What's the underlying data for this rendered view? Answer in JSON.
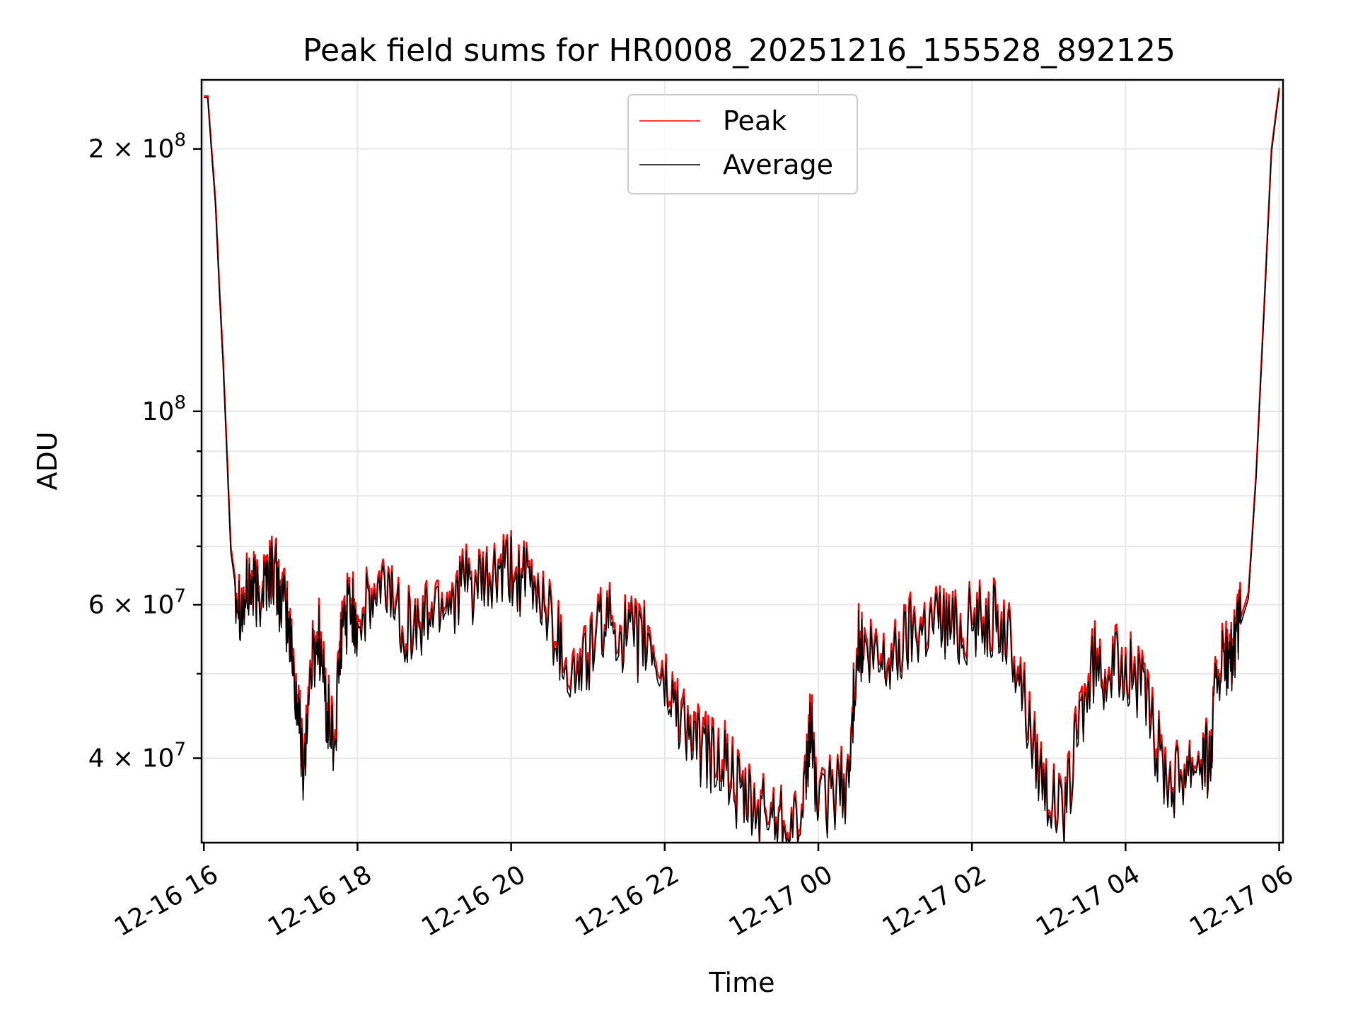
{
  "chart_data": {
    "type": "line",
    "title": "Peak field sums for HR0008_20251216_155528_892125",
    "xlabel": "Time",
    "ylabel": "ADU",
    "yscale": "log",
    "ylim": [
      32000000,
      240000000
    ],
    "xlim_hours": [
      -0.03,
      14.05
    ],
    "grid": true,
    "legend_position": "top-center",
    "x_ticks": [
      {
        "hour": 0,
        "label": "12-16 16"
      },
      {
        "hour": 2,
        "label": "12-16 18"
      },
      {
        "hour": 4,
        "label": "12-16 20"
      },
      {
        "hour": 6,
        "label": "12-16 22"
      },
      {
        "hour": 8,
        "label": "12-17 00"
      },
      {
        "hour": 10,
        "label": "12-17 02"
      },
      {
        "hour": 12,
        "label": "12-17 04"
      },
      {
        "hour": 14,
        "label": "12-17 06"
      }
    ],
    "y_major_ticks": [
      {
        "value": 100000000,
        "mantissa": "",
        "base": "10",
        "exp": "8"
      },
      {
        "value": 200000000,
        "mantissa": "2 × ",
        "base": "10",
        "exp": "8"
      },
      {
        "value": 40000000,
        "mantissa": "4 × ",
        "base": "10",
        "exp": "7"
      },
      {
        "value": 60000000,
        "mantissa": "6 × ",
        "base": "10",
        "exp": "7"
      }
    ],
    "y_minor_grid": [
      50000000,
      70000000,
      80000000,
      90000000
    ],
    "series": [
      {
        "name": "Peak",
        "color": "#ff0000",
        "hours": [
          0.0,
          0.05,
          0.1,
          0.15,
          0.2,
          0.25,
          0.3,
          0.35,
          0.4,
          0.5,
          0.6,
          0.7,
          0.8,
          0.9,
          1.0,
          1.1,
          1.2,
          1.3,
          1.4,
          1.5,
          1.6,
          1.7,
          1.8,
          1.9,
          2.0,
          2.2,
          2.4,
          2.6,
          2.8,
          3.0,
          3.2,
          3.4,
          3.6,
          3.8,
          4.0,
          4.2,
          4.4,
          4.6,
          4.8,
          5.0,
          5.2,
          5.4,
          5.6,
          5.8,
          6.0,
          6.2,
          6.4,
          6.6,
          6.8,
          7.0,
          7.2,
          7.4,
          7.6,
          7.8,
          7.9,
          8.0,
          8.2,
          8.4,
          8.5,
          8.6,
          8.8,
          9.0,
          9.2,
          9.4,
          9.6,
          9.8,
          10.0,
          10.2,
          10.4,
          10.6,
          10.8,
          11.0,
          11.2,
          11.4,
          11.6,
          11.8,
          12.0,
          12.2,
          12.4,
          12.6,
          12.8,
          13.0,
          13.1,
          13.2,
          13.3,
          13.4,
          13.5,
          13.6,
          13.7,
          13.8,
          13.9,
          14.0
        ],
        "values": [
          230000000,
          230000000,
          200000000,
          175000000,
          140000000,
          115000000,
          90000000,
          70000000,
          65000000,
          60000000,
          64000000,
          62000000,
          65000000,
          67000000,
          62000000,
          58000000,
          48000000,
          40000000,
          52000000,
          56000000,
          46000000,
          42000000,
          57000000,
          61000000,
          58000000,
          61000000,
          64000000,
          58000000,
          57000000,
          61000000,
          62000000,
          64000000,
          63000000,
          65000000,
          66000000,
          64000000,
          62000000,
          56000000,
          50000000,
          53000000,
          58000000,
          57000000,
          55000000,
          55000000,
          49000000,
          46000000,
          42000000,
          41000000,
          40000000,
          36000000,
          35000000,
          35000000,
          34500000,
          34000000,
          45000000,
          35000000,
          37000000,
          38000000,
          55000000,
          53000000,
          52000000,
          53000000,
          57000000,
          58000000,
          59000000,
          57000000,
          58000000,
          59000000,
          57000000,
          52000000,
          42000000,
          37000000,
          34000000,
          45000000,
          52000000,
          51000000,
          52000000,
          49000000,
          42000000,
          38000000,
          40000000,
          41000000,
          40000000,
          52000000,
          52000000,
          53000000,
          58000000,
          62000000,
          85000000,
          130000000,
          200000000,
          235000000
        ]
      },
      {
        "name": "Average",
        "color": "#000000",
        "hours": [
          0.0,
          0.05,
          0.1,
          0.15,
          0.2,
          0.25,
          0.3,
          0.35,
          0.4,
          0.5,
          0.6,
          0.7,
          0.8,
          0.9,
          1.0,
          1.1,
          1.2,
          1.3,
          1.4,
          1.5,
          1.6,
          1.7,
          1.8,
          1.9,
          2.0,
          2.2,
          2.4,
          2.6,
          2.8,
          3.0,
          3.2,
          3.4,
          3.6,
          3.8,
          4.0,
          4.2,
          4.4,
          4.6,
          4.8,
          5.0,
          5.2,
          5.4,
          5.6,
          5.8,
          6.0,
          6.2,
          6.4,
          6.6,
          6.8,
          7.0,
          7.2,
          7.4,
          7.6,
          7.8,
          7.9,
          8.0,
          8.2,
          8.4,
          8.5,
          8.6,
          8.8,
          9.0,
          9.2,
          9.4,
          9.6,
          9.8,
          10.0,
          10.2,
          10.4,
          10.6,
          10.8,
          11.0,
          11.2,
          11.4,
          11.6,
          11.8,
          12.0,
          12.2,
          12.4,
          12.6,
          12.8,
          13.0,
          13.1,
          13.2,
          13.3,
          13.4,
          13.5,
          13.6,
          13.7,
          13.8,
          13.9,
          14.0
        ],
        "values": [
          229000000,
          229000000,
          198000000,
          173000000,
          138000000,
          113000000,
          89000000,
          69000000,
          64000000,
          59000000,
          63000000,
          61000000,
          64000000,
          66000000,
          61000000,
          57000000,
          47000000,
          39000000,
          51000000,
          55000000,
          45000000,
          41000000,
          56000000,
          60000000,
          57000000,
          60000000,
          63000000,
          57000000,
          56000000,
          60000000,
          61000000,
          63000000,
          62000000,
          64000000,
          65000000,
          63000000,
          61000000,
          55000000,
          49000000,
          52000000,
          57000000,
          56000000,
          54000000,
          54000000,
          48000000,
          45000000,
          41000000,
          40000000,
          39000000,
          35500000,
          34500000,
          34500000,
          34000000,
          33500000,
          44000000,
          34500000,
          36500000,
          37500000,
          54000000,
          52000000,
          51000000,
          52000000,
          56000000,
          57000000,
          58000000,
          56000000,
          57000000,
          58000000,
          56000000,
          51000000,
          41000000,
          36500000,
          33500000,
          44000000,
          51000000,
          50000000,
          51000000,
          48000000,
          41000000,
          37500000,
          39500000,
          40500000,
          39500000,
          51000000,
          51000000,
          52000000,
          57000000,
          61000000,
          84000000,
          128000000,
          198000000,
          233000000
        ]
      }
    ]
  }
}
